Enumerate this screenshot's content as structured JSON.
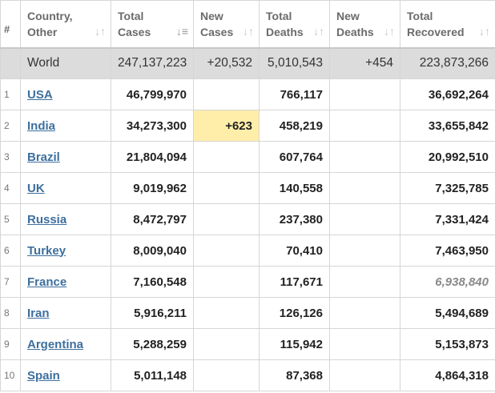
{
  "headers": {
    "rank": "#",
    "country": [
      "Country,",
      "Other"
    ],
    "total_cases": [
      "Total",
      "Cases"
    ],
    "new_cases": [
      "New",
      "Cases"
    ],
    "total_deaths": [
      "Total",
      "Deaths"
    ],
    "new_deaths": [
      "New",
      "Deaths"
    ],
    "total_recovered": [
      "Total",
      "Recovered"
    ],
    "sort_icon": "sort-arrows-icon",
    "sort_active_icon": "sort-desc-icon"
  },
  "world": {
    "country": "World",
    "total_cases": "247,137,223",
    "new_cases": "+20,532",
    "total_deaths": "5,010,543",
    "new_deaths": "+454",
    "total_recovered": "223,873,266"
  },
  "rows": [
    {
      "rank": "1",
      "country": "USA",
      "total_cases": "46,799,970",
      "new_cases": "",
      "total_deaths": "766,117",
      "new_deaths": "",
      "total_recovered": "36,692,264"
    },
    {
      "rank": "2",
      "country": "India",
      "total_cases": "34,273,300",
      "new_cases": "+623",
      "total_deaths": "458,219",
      "new_deaths": "",
      "total_recovered": "33,655,842"
    },
    {
      "rank": "3",
      "country": "Brazil",
      "total_cases": "21,804,094",
      "new_cases": "",
      "total_deaths": "607,764",
      "new_deaths": "",
      "total_recovered": "20,992,510"
    },
    {
      "rank": "4",
      "country": "UK",
      "total_cases": "9,019,962",
      "new_cases": "",
      "total_deaths": "140,558",
      "new_deaths": "",
      "total_recovered": "7,325,785"
    },
    {
      "rank": "5",
      "country": "Russia",
      "total_cases": "8,472,797",
      "new_cases": "",
      "total_deaths": "237,380",
      "new_deaths": "",
      "total_recovered": "7,331,424"
    },
    {
      "rank": "6",
      "country": "Turkey",
      "total_cases": "8,009,040",
      "new_cases": "",
      "total_deaths": "70,410",
      "new_deaths": "",
      "total_recovered": "7,463,950"
    },
    {
      "rank": "7",
      "country": "France",
      "total_cases": "7,160,548",
      "new_cases": "",
      "total_deaths": "117,671",
      "new_deaths": "",
      "total_recovered": "6,938,840"
    },
    {
      "rank": "8",
      "country": "Iran",
      "total_cases": "5,916,211",
      "new_cases": "",
      "total_deaths": "126,126",
      "new_deaths": "",
      "total_recovered": "5,494,689"
    },
    {
      "rank": "9",
      "country": "Argentina",
      "total_cases": "5,288,259",
      "new_cases": "",
      "total_deaths": "115,942",
      "new_deaths": "",
      "total_recovered": "5,153,873"
    },
    {
      "rank": "10",
      "country": "Spain",
      "total_cases": "5,011,148",
      "new_cases": "",
      "total_deaths": "87,368",
      "new_deaths": "",
      "total_recovered": "4,864,318"
    }
  ],
  "colors": {
    "link": "#3d6f9e",
    "world_row_bg": "#dcdcdc",
    "new_cases_highlight": "#ffeeaa",
    "grey_value": "#8a8a8a"
  }
}
